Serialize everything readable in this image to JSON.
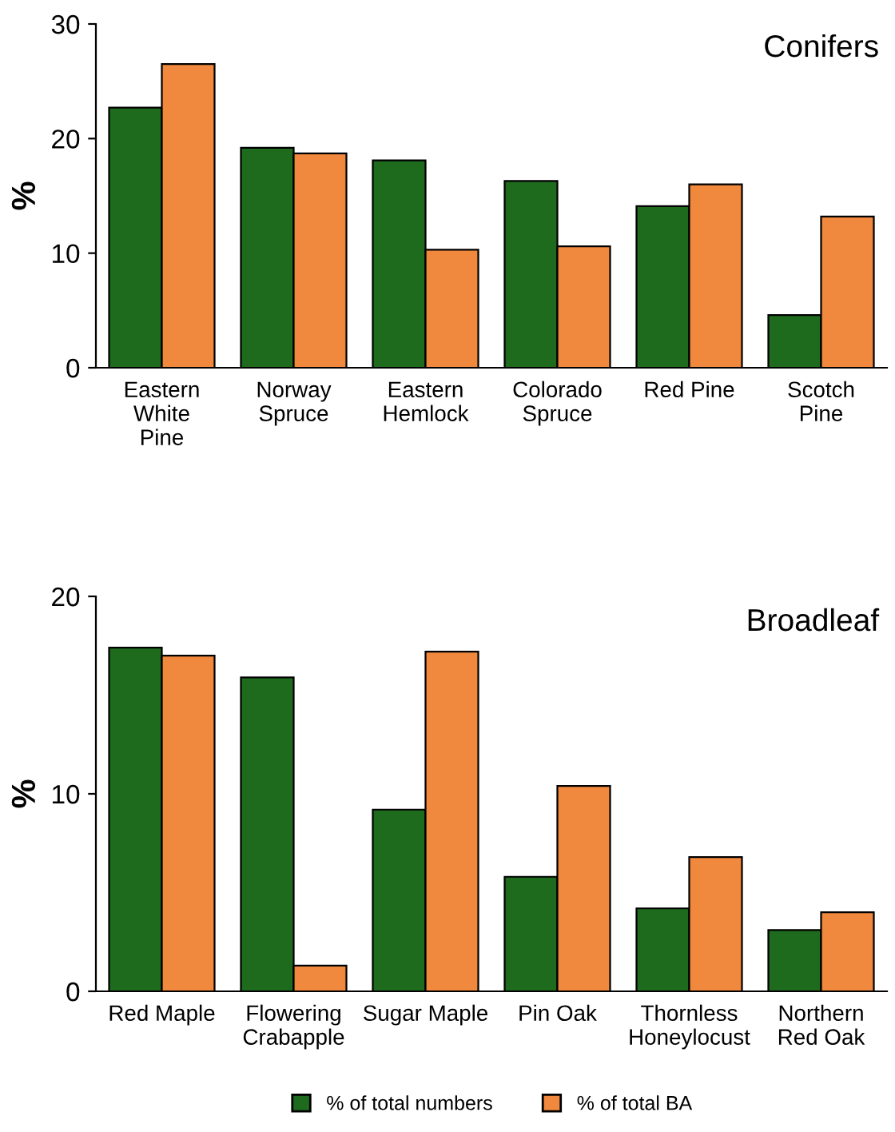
{
  "chart_data": [
    {
      "type": "bar",
      "title": "Conifers",
      "ylabel": "%",
      "categories": [
        "Eastern\nWhite\nPine",
        "Norway\nSpruce",
        "Eastern\nHemlock",
        "Colorado\nSpruce",
        "Red Pine",
        "Scotch\nPine"
      ],
      "series": [
        {
          "color": "#1e6b1e",
          "values": [
            22.7,
            19.2,
            18.1,
            16.3,
            14.1,
            4.6
          ]
        },
        {
          "color": "#f0883e",
          "values": [
            26.5,
            18.7,
            10.3,
            10.6,
            16.0,
            13.2
          ]
        }
      ],
      "ylim": [
        0,
        30
      ],
      "yticks": [
        0,
        10,
        20,
        30
      ],
      "grid": false,
      "legend": false
    },
    {
      "type": "bar",
      "title": "Broadleaf",
      "ylabel": "%",
      "categories": [
        "Red Maple",
        "Flowering\nCrabapple",
        "Sugar Maple",
        "Pin Oak",
        "Thornless\nHoneylocust",
        "Northern\nRed Oak"
      ],
      "series": [
        {
          "name": "% of total numbers",
          "color": "#1e6b1e",
          "values": [
            17.4,
            15.9,
            9.2,
            5.8,
            4.2,
            3.1
          ]
        },
        {
          "name": "% of total BA",
          "color": "#f0883e",
          "values": [
            17.0,
            1.3,
            17.2,
            10.4,
            6.8,
            4.0
          ]
        }
      ],
      "ylim": [
        0,
        20
      ],
      "yticks": [
        0,
        10,
        20
      ],
      "grid": false,
      "legend": "bottom"
    }
  ]
}
